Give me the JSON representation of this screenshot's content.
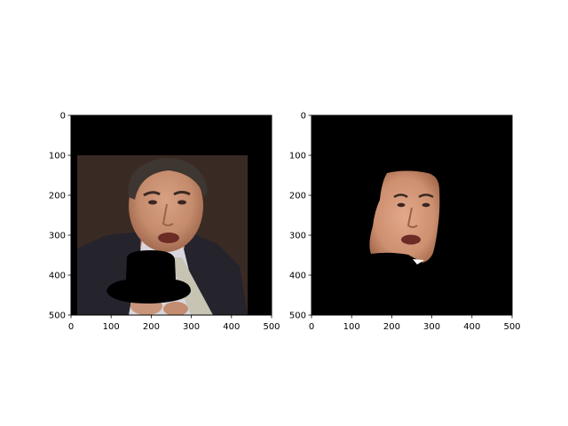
{
  "chart_data": [
    {
      "type": "image",
      "title": "",
      "xlabel": "",
      "ylabel": "",
      "xlim": [
        0,
        500
      ],
      "ylim": [
        500,
        0
      ],
      "x_ticks": [
        "0",
        "100",
        "200",
        "300",
        "400",
        "500"
      ],
      "y_ticks": [
        "0",
        "100",
        "200",
        "300",
        "400",
        "500"
      ],
      "content": "photo-with-masked-region"
    },
    {
      "type": "image",
      "title": "",
      "xlabel": "",
      "ylabel": "",
      "xlim": [
        0,
        500
      ],
      "ylim": [
        500,
        0
      ],
      "x_ticks": [
        "0",
        "100",
        "200",
        "300",
        "400",
        "500"
      ],
      "y_ticks": [
        "0",
        "100",
        "200",
        "300",
        "400",
        "500"
      ],
      "content": "face-segmentation-on-black"
    }
  ]
}
